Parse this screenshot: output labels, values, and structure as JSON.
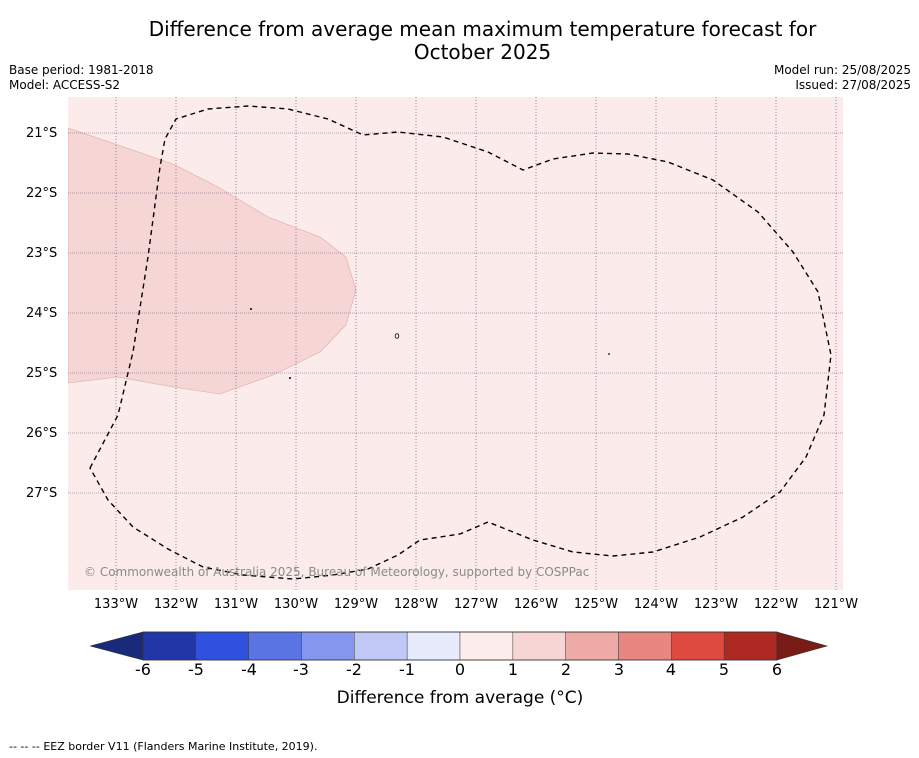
{
  "title_line1": "Difference from average mean maximum temperature forecast for",
  "title_line2": "October 2025",
  "base_period": "Base period: 1981-2018",
  "model": "Model: ACCESS-S2",
  "model_run": "Model run: 25/08/2025",
  "issued": "Issued: 27/08/2025",
  "copyright": "© Commonwealth of Australia 2025, Bureau of Meteorology, supported by COSPPac",
  "lat_labels": [
    "21°S",
    "22°S",
    "23°S",
    "24°S",
    "25°S",
    "26°S",
    "27°S"
  ],
  "lon_labels": [
    "133°W",
    "132°W",
    "131°W",
    "130°W",
    "129°W",
    "128°W",
    "127°W",
    "126°W",
    "125°W",
    "124°W",
    "123°W",
    "122°W",
    "121°W"
  ],
  "colorbar": {
    "ticks": [
      "-6",
      "-5",
      "-4",
      "-3",
      "-2",
      "-1",
      "0",
      "1",
      "2",
      "3",
      "4",
      "5",
      "6"
    ],
    "colors": [
      "#2236a8",
      "#3050e0",
      "#5a74e4",
      "#8596ee",
      "#c0c8f6",
      "#e7ebfb",
      "#fdecec",
      "#f7d5d4",
      "#eeaaa6",
      "#e88680",
      "#de4a40",
      "#ad2922"
    ],
    "under_color": "#1a2a7a",
    "over_color": "#7a1c16",
    "label": "Difference from average (°C)"
  },
  "legend": {
    "eez_symbol": "-- -- --",
    "eez_text": "EEZ border V11 (Flanders Marine Institute, 2019)."
  },
  "map_colors": {
    "background_category": "#fbeceb",
    "warm_category": "#f6d6d5"
  }
}
